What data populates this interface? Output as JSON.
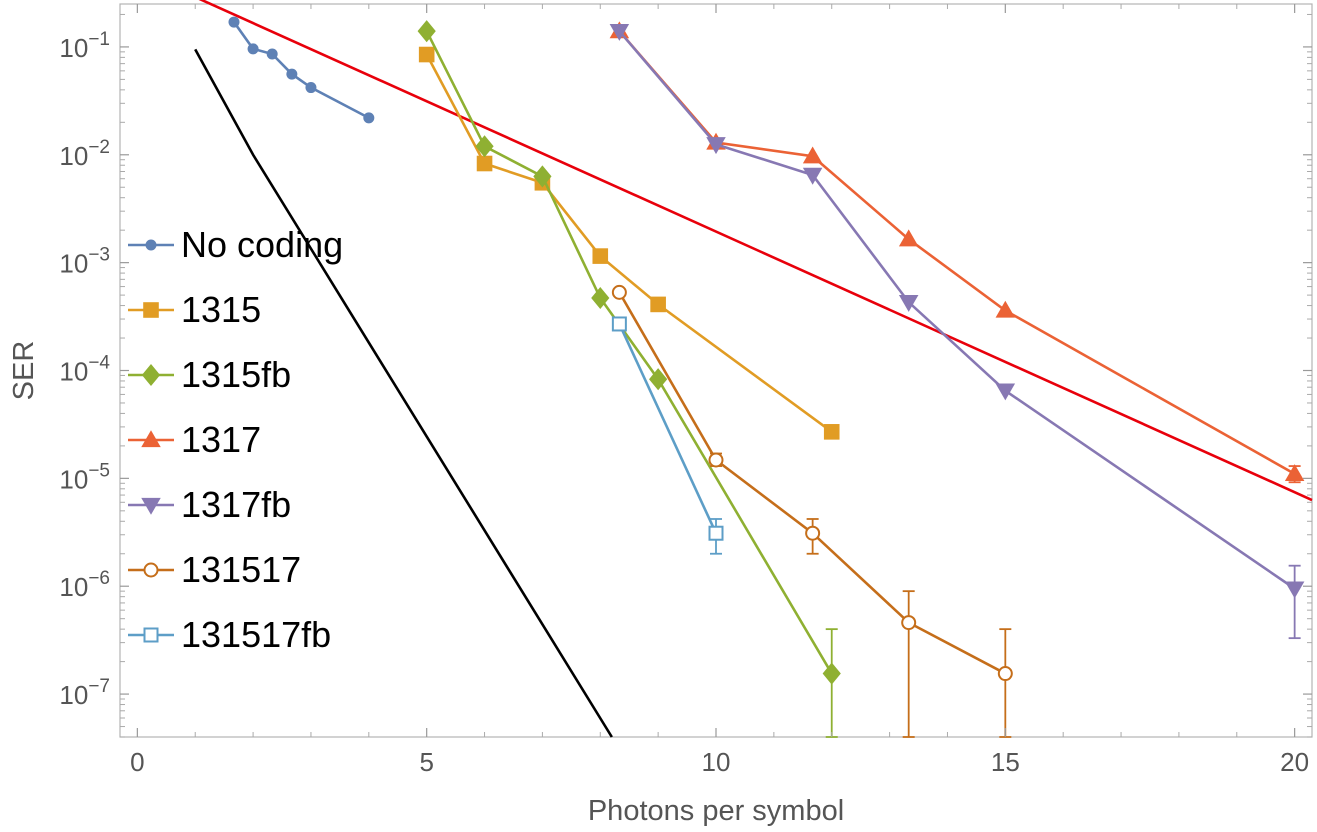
{
  "chart_data": {
    "type": "scatter",
    "title": "",
    "xlabel": "Photons per symbol",
    "ylabel": "SER",
    "xlim": [
      -0.3,
      20.3
    ],
    "ylim": [
      4e-08,
      0.25
    ],
    "yscale": "log",
    "xticks": [
      0,
      5,
      10,
      15,
      20
    ],
    "xtick_labels": [
      "0",
      "5",
      "10",
      "15",
      "20"
    ],
    "yticks": [
      {
        "value": 1e-07,
        "base": "10",
        "exp": "−7"
      },
      {
        "value": 1e-06,
        "base": "10",
        "exp": "−6"
      },
      {
        "value": 1e-05,
        "base": "10",
        "exp": "−5"
      },
      {
        "value": 0.0001,
        "base": "10",
        "exp": "−4"
      },
      {
        "value": 0.001,
        "base": "10",
        "exp": "−3"
      },
      {
        "value": 0.01,
        "base": "10",
        "exp": "−2"
      },
      {
        "value": 0.1,
        "base": "10",
        "exp": "−1"
      }
    ],
    "grid": false,
    "legend_position": "left",
    "series": [
      {
        "name": "No coding",
        "color": "#5E81B5",
        "marker": "circle",
        "x": [
          1.67,
          2.0,
          2.33,
          2.67,
          3.0,
          4.0
        ],
        "y": [
          0.17,
          0.096,
          0.086,
          0.056,
          0.042,
          0.022
        ]
      },
      {
        "name": "1315",
        "color": "#E19C24",
        "marker": "square",
        "x": [
          5,
          6,
          7,
          8,
          9,
          12
        ],
        "y": [
          0.085,
          0.0083,
          0.0055,
          0.00115,
          0.00041,
          2.7e-05
        ]
      },
      {
        "name": "1315fb",
        "color": "#8FB032",
        "marker": "diamond",
        "x": [
          5,
          6,
          7,
          8,
          9,
          12
        ],
        "y": [
          0.14,
          0.012,
          0.0063,
          0.00047,
          8.3e-05,
          1.55e-07
        ],
        "error_bars": [
          {
            "x": 12,
            "low": 4e-08,
            "high": 4e-07
          }
        ]
      },
      {
        "name": "1317",
        "color": "#EB6235",
        "marker": "triangle-up",
        "x": [
          8.33,
          10,
          11.67,
          13.33,
          15,
          20
        ],
        "y": [
          0.14,
          0.013,
          0.0097,
          0.00165,
          0.00036,
          1.1e-05
        ],
        "error_bars": [
          {
            "x": 20,
            "low": 9.2e-06,
            "high": 1.3e-05
          }
        ]
      },
      {
        "name": "1317fb",
        "color": "#8778B3",
        "marker": "triangle-down",
        "x": [
          8.33,
          10,
          11.67,
          13.33,
          15,
          20
        ],
        "y": [
          0.14,
          0.0125,
          0.0065,
          0.00043,
          6.5e-05,
          9.5e-07
        ],
        "error_bars": [
          {
            "x": 20,
            "low": 3.3e-07,
            "high": 1.55e-06
          }
        ]
      },
      {
        "name": "131517",
        "color": "#C56E1A",
        "marker": "open-circle",
        "x": [
          8.33,
          10,
          11.67,
          13.33,
          15
        ],
        "y": [
          0.00053,
          1.48e-05,
          3.1e-06,
          4.6e-07,
          1.55e-07
        ],
        "error_bars": [
          {
            "x": 10,
            "low": 1.3e-05,
            "high": 1.7e-05
          },
          {
            "x": 11.67,
            "low": 2e-06,
            "high": 4.2e-06
          },
          {
            "x": 13.33,
            "low": 4e-08,
            "high": 9e-07
          },
          {
            "x": 15,
            "low": 4e-08,
            "high": 4e-07
          }
        ]
      },
      {
        "name": "131517fb",
        "color": "#5D9EC7",
        "marker": "open-square",
        "x": [
          8.33,
          10
        ],
        "y": [
          0.00027,
          3.1e-06
        ],
        "error_bars": [
          {
            "x": 10,
            "low": 2e-06,
            "high": 4.2e-06
          }
        ]
      }
    ],
    "reference_lines": [
      {
        "color": "#E8000B",
        "x": [
          1,
          20.3
        ],
        "y": [
          0.29,
          6.3e-06
        ]
      },
      {
        "color": "#000000",
        "x": [
          1,
          2,
          8.2
        ],
        "y": [
          0.095,
          0.01,
          4e-08
        ]
      }
    ]
  }
}
